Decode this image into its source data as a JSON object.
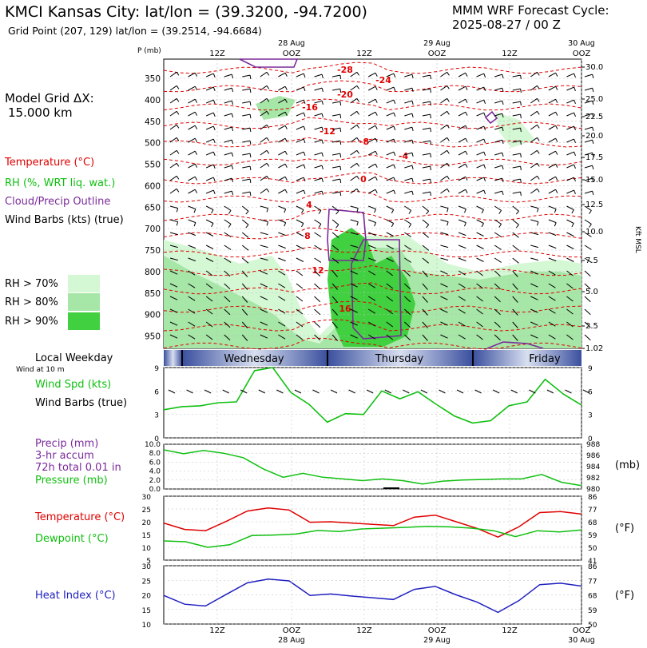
{
  "header": {
    "title": "KMCI Kansas City:  lat/lon = (39.3200, -94.7200)",
    "subtitle": "Grid Point (207, 129) lat/lon = (39.2514, -94.6684)",
    "cycle_line1": "MMM WRF Forecast Cycle:",
    "cycle_line2": "2025-08-27 / 00  Z",
    "grid_line1": "Model Grid ΔX:",
    "grid_line2": "15.000 km"
  },
  "legend": {
    "temperature": "Temperature (°C)",
    "rh": "RH (%, WRT liq. wat.)",
    "cloud": "Cloud/Precip Outline",
    "wind": "Wind Barbs (kts) (true)",
    "rh70": "RH > 70%",
    "rh80": "RH > 80%",
    "rh90": "RH > 90%",
    "rh_colors": [
      "#d4f7d4",
      "#a6e6a6",
      "#40d040"
    ]
  },
  "colors": {
    "temp": "#e00000",
    "dewpoint": "#10c010",
    "heat": "#2020c0",
    "cloud": "#7a2a9a",
    "wind": "#10c010"
  },
  "labels": {
    "p_axis": "P (mb)",
    "km_axis": "Kft MSL",
    "local_weekday": "Local Weekday",
    "wind_at": "Wind at 10 m",
    "wind_spd": "Wind Spd (kts)",
    "wind_barbs": "Wind Barbs (true)",
    "precip1": "Precip (mm)",
    "precip2": "3-hr accum",
    "precip3": "72h total 0.01 in",
    "pressure": "Pressure (mb)",
    "pressure_unit": "(mb)",
    "temp": "Temperature (°C)",
    "dew": "Dewpoint (°C)",
    "degF1": "(°F)",
    "heat": "Heat Index (°C)",
    "degF2": "(°F)",
    "days": [
      "Wednesday",
      "Thursday",
      "Friday"
    ]
  },
  "time_axis": {
    "ticks": [
      "12Z",
      "OOZ",
      "12Z",
      "OOZ",
      "12Z",
      "OOZ"
    ],
    "dates": [
      {
        "label": "28 Aug",
        "at": "OOZ-1"
      },
      {
        "label": "29 Aug",
        "at": "OOZ-2"
      },
      {
        "label": "30 Aug",
        "at": "OOZ-3"
      }
    ]
  },
  "chart_data": [
    {
      "type": "heatmap",
      "title": "",
      "ylabel": "P (mb)",
      "pressure_ticks": [
        350,
        400,
        450,
        500,
        550,
        600,
        650,
        700,
        750,
        800,
        850,
        900,
        950
      ],
      "height_ticks_kft": [
        "30.0",
        "25.0",
        "22.5",
        "20.0",
        "17.5",
        "15.0",
        "12.5",
        "10.0",
        "7.5",
        "5.0",
        "2.5",
        "1.02"
      ],
      "isotherm_labels": [
        "-28",
        "-24",
        "-20",
        "-16",
        "-12",
        "-8",
        "-4",
        "0",
        "4",
        "8",
        "12",
        "16"
      ]
    },
    {
      "type": "line",
      "title": "",
      "series": [
        {
          "name": "Wind Spd (kts)",
          "values": [
            3.6,
            4.0,
            4.1,
            4.5,
            4.6,
            8.6,
            9.0,
            5.8,
            4.3,
            2.0,
            3.1,
            3.0,
            6.0,
            5.0,
            5.9,
            4.3,
            2.8,
            1.9,
            2.2,
            4.1,
            4.6,
            7.5,
            5.6,
            4.2
          ]
        }
      ],
      "ylim": [
        0,
        9
      ],
      "yticks": [
        0,
        3,
        6,
        9
      ]
    },
    {
      "type": "line",
      "title": "",
      "series": [
        {
          "name": "Pressure (mb)",
          "values": [
            987.0,
            986.3,
            986.9,
            986.4,
            985.6,
            983.6,
            982.1,
            982.8,
            982.1,
            981.8,
            981.5,
            981.8,
            981.5,
            980.9,
            981.4,
            981.6,
            981.7,
            981.8,
            981.8,
            982.6,
            981.2,
            980.6
          ]
        }
      ],
      "precip_ticks": [
        "0.0",
        "2.0",
        "4.0",
        "6.0",
        "8.0",
        "10.0"
      ],
      "pressure_ticks": [
        980,
        982,
        984,
        986,
        988
      ]
    },
    {
      "type": "line",
      "title": "",
      "series": [
        {
          "name": "Temperature (°C)",
          "values": [
            19.5,
            17.0,
            16.5,
            20.2,
            24.2,
            25.4,
            24.6,
            19.8,
            20.0,
            19.5,
            19.0,
            18.5,
            21.8,
            22.6,
            20.0,
            17.4,
            14.0,
            18.0,
            23.6,
            24.0,
            23.0
          ]
        },
        {
          "name": "Dewpoint (°C)",
          "values": [
            12.5,
            12.2,
            10.0,
            11.0,
            14.6,
            14.8,
            15.2,
            16.6,
            16.2,
            17.2,
            17.5,
            17.8,
            18.2,
            18.0,
            17.5,
            16.5,
            14.2,
            16.5,
            16.0,
            16.8
          ]
        }
      ],
      "ylim": [
        5,
        30
      ],
      "yticks": [
        5,
        10,
        15,
        20,
        25,
        30
      ],
      "f_ticks": [
        "41",
        "50",
        "59",
        "68",
        "77",
        "86"
      ]
    },
    {
      "type": "line",
      "title": "",
      "series": [
        {
          "name": "Heat Index (°C)",
          "values": [
            19.8,
            16.8,
            16.2,
            20.2,
            24.1,
            25.4,
            24.8,
            19.8,
            20.3,
            19.6,
            19.0,
            18.4,
            21.9,
            22.9,
            20.0,
            17.5,
            14.0,
            18.0,
            23.5,
            24.0,
            23.0
          ]
        }
      ],
      "ylim": [
        10,
        30
      ],
      "yticks": [
        10,
        15,
        20,
        25,
        30
      ],
      "f_ticks": [
        "50",
        "59",
        "68",
        "77",
        "86"
      ]
    }
  ]
}
